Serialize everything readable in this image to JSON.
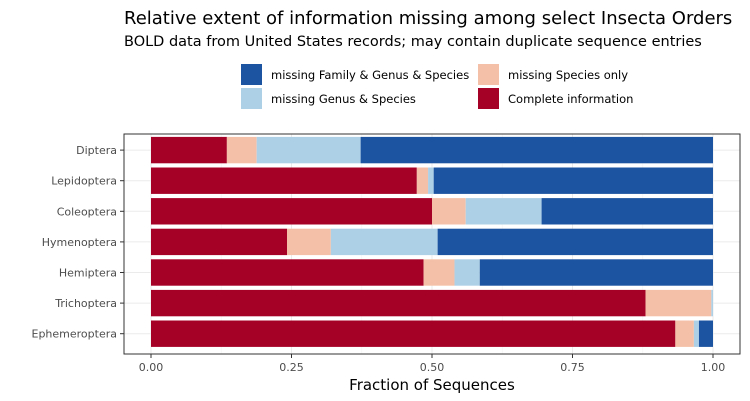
{
  "chart_data": {
    "type": "bar",
    "orientation": "horizontal",
    "stacked": true,
    "title": "Relative extent of information missing among select Insecta Orders",
    "subtitle": "BOLD data from United States records; may contain duplicate sequence entries",
    "xlabel": "Fraction of Sequences",
    "ylabel": "",
    "xlim": [
      0,
      1
    ],
    "xticks": [
      0,
      0.25,
      0.5,
      0.75,
      1
    ],
    "xtick_labels": [
      "0.00",
      "0.25",
      "0.50",
      "0.75",
      "1.00"
    ],
    "categories": [
      "Diptera",
      "Lepidoptera",
      "Coleoptera",
      "Hymenoptera",
      "Hemiptera",
      "Trichoptera",
      "Ephemeroptera"
    ],
    "series": [
      {
        "name": "Complete information",
        "color": "#a50026",
        "values": [
          0.135,
          0.473,
          0.5,
          0.242,
          0.485,
          0.88,
          0.933
        ]
      },
      {
        "name": "missing Species only",
        "color": "#f4c1a8",
        "values": [
          0.053,
          0.02,
          0.06,
          0.078,
          0.055,
          0.117,
          0.033
        ]
      },
      {
        "name": "missing Genus & Species",
        "color": "#aed0e6",
        "values": [
          0.185,
          0.01,
          0.135,
          0.19,
          0.045,
          0.003,
          0.009
        ]
      },
      {
        "name": "missing Family & Genus & Species",
        "color": "#1c54a1",
        "values": [
          0.627,
          0.497,
          0.305,
          0.49,
          0.415,
          0.0,
          0.025
        ]
      }
    ],
    "legend": {
      "position": "top",
      "entries": [
        {
          "label": "missing Family & Genus & Species",
          "color": "#1c54a1"
        },
        {
          "label": "missing Species only",
          "color": "#f4c1a8"
        },
        {
          "label": "missing Genus & Species",
          "color": "#aed0e6"
        },
        {
          "label": "Complete information",
          "color": "#a50026"
        }
      ]
    },
    "grid": true
  }
}
